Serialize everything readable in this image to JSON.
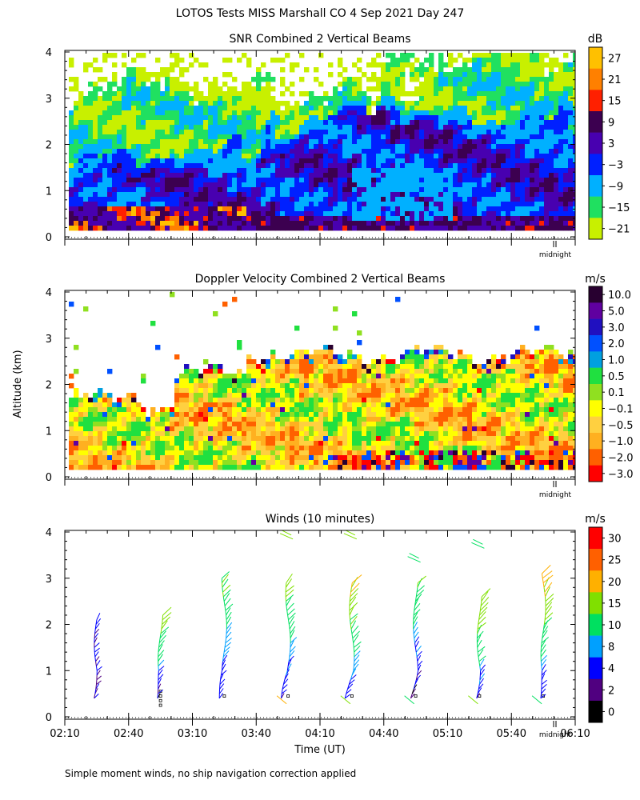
{
  "title": "LOTOS Tests MISS Marshall CO   4 Sep 2021 Day 247",
  "footnote": "Simple moment winds, no ship navigation correction applied",
  "shared": {
    "ylabel": "Altitude (km)",
    "xlabel": "Time (UT)",
    "midnight_label": "midnight",
    "y_ticks": [
      "0",
      "1",
      "2",
      "3",
      "4"
    ],
    "x_ticks": [
      "02:10",
      "02:40",
      "03:10",
      "03:40",
      "04:10",
      "04:40",
      "05:10",
      "05:40",
      "06:10"
    ]
  },
  "chart_data": [
    {
      "type": "heatmap",
      "title": "SNR Combined 2 Vertical Beams",
      "unit": "dB",
      "xlabel": "Time (UT)",
      "ylabel": "Altitude (km)",
      "xlim": [
        "02:10",
        "06:10"
      ],
      "ylim": [
        0,
        4
      ],
      "colorbar": {
        "labels": [
          "27",
          "21",
          "15",
          "9",
          "3",
          "−3",
          "−9",
          "−15",
          "−21"
        ],
        "colors": [
          "#ffc000",
          "#ff8000",
          "#ff2000",
          "#3c0050",
          "#4800b0",
          "#0020ff",
          "#00b0ff",
          "#20e060",
          "#c8f000"
        ]
      },
      "profile_hint": "strongest return (9 to 27 dB) below 0.6 km early; -3 to 9 dB layer up to ~2.5 km; weak -15 to -21 dB above ~3 km"
    },
    {
      "type": "heatmap",
      "title": "Doppler Velocity Combined 2 Vertical Beams",
      "unit": "m/s",
      "xlabel": "Time (UT)",
      "ylabel": "Altitude (km)",
      "xlim": [
        "02:10",
        "06:10"
      ],
      "ylim": [
        0,
        4
      ],
      "colorbar": {
        "labels": [
          "10.0",
          "5.0",
          "3.0",
          "2.0",
          "1.0",
          "0.5",
          "0.1",
          "−0.1",
          "−0.5",
          "−1.0",
          "−2.0",
          "−3.0"
        ],
        "colors": [
          "#280030",
          "#6000a0",
          "#2010c0",
          "#0050ff",
          "#00a0e0",
          "#20e040",
          "#90e020",
          "#ffff00",
          "#ffd040",
          "#ffb020",
          "#ff6000",
          "#ff0000"
        ]
      },
      "profile_hint": "mostly -0.1 to -1.0 m/s (yellow/orange) below ~2.7 km; noisy +/-3 m/s band near 0.5 km after 04:25"
    },
    {
      "type": "scatter",
      "title": "Winds (10 minutes)",
      "unit": "m/s",
      "xlabel": "Time (UT)",
      "ylabel": "Altitude (km)",
      "xlim": [
        "02:10",
        "06:10"
      ],
      "ylim": [
        0,
        4
      ],
      "colorbar": {
        "labels": [
          "30",
          "25",
          "20",
          "15",
          "10",
          "8",
          "4",
          "2",
          "0"
        ],
        "colors": [
          "#ff0000",
          "#ff6000",
          "#ffb000",
          "#80e000",
          "#00e060",
          "#00a0ff",
          "#0000ff",
          "#500080",
          "#000000"
        ]
      },
      "profiles": [
        {
          "time": "02:25",
          "top_km": 2.2,
          "speed_low": 3,
          "speed_high": 6
        },
        {
          "time": "02:55",
          "top_km": 2.3,
          "speed_low": 2,
          "speed_high": 20
        },
        {
          "time": "03:25",
          "top_km": 3.1,
          "speed_low": 4,
          "speed_high": 16
        },
        {
          "time": "03:55",
          "top_km": 3.0,
          "speed_low": 4,
          "speed_high": 18
        },
        {
          "time": "04:25",
          "top_km": 3.0,
          "speed_low": 4,
          "speed_high": 22
        },
        {
          "time": "04:55",
          "top_km": 3.0,
          "speed_low": 2,
          "speed_high": 16
        },
        {
          "time": "05:25",
          "top_km": 2.7,
          "speed_low": 4,
          "speed_high": 20
        },
        {
          "time": "05:55",
          "top_km": 3.2,
          "speed_low": 4,
          "speed_high": 22
        }
      ],
      "upper_gates": [
        {
          "time": "03:55",
          "alt_km": 3.9,
          "speed": 15
        },
        {
          "time": "04:25",
          "alt_km": 3.9,
          "speed": 15
        },
        {
          "time": "04:55",
          "alt_km": 3.4,
          "speed": 14
        },
        {
          "time": "05:25",
          "alt_km": 3.7,
          "speed": 14
        }
      ]
    }
  ]
}
